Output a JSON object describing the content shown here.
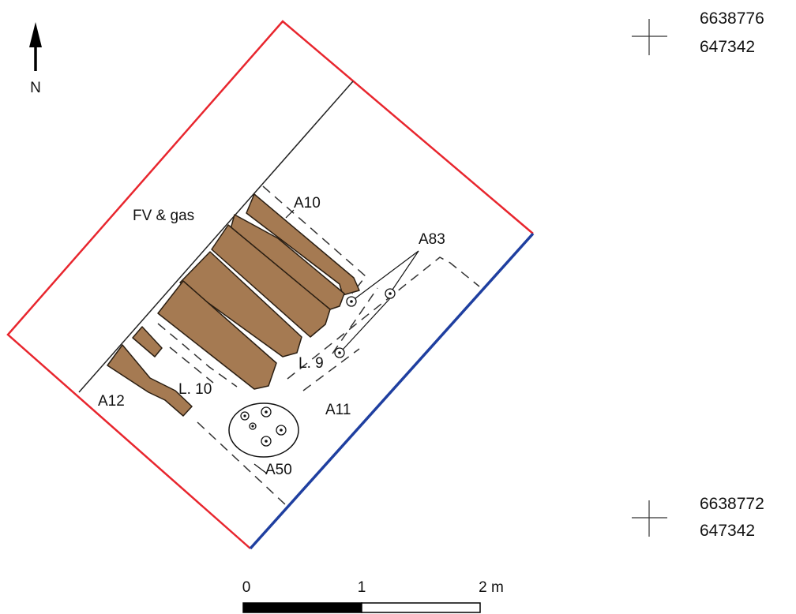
{
  "north": {
    "label": "N"
  },
  "labels": {
    "fv_gas": "FV & gas",
    "a10": "A10",
    "a83": "A83",
    "l9": "L. 9",
    "l10": "L. 10",
    "a12": "A12",
    "a11": "A11",
    "a50": "A50"
  },
  "coordinates": {
    "top": {
      "northing": "6638776",
      "easting": "647342"
    },
    "bottom": {
      "northing": "6638772",
      "easting": "647342"
    }
  },
  "scale": {
    "ticks": [
      "0",
      "1",
      "2 m"
    ]
  },
  "colors": {
    "excavation_boundary": "#e8262e",
    "limit_blue": "#1f3fa0",
    "feature_fill": "#a57a52",
    "line": "#222222"
  }
}
